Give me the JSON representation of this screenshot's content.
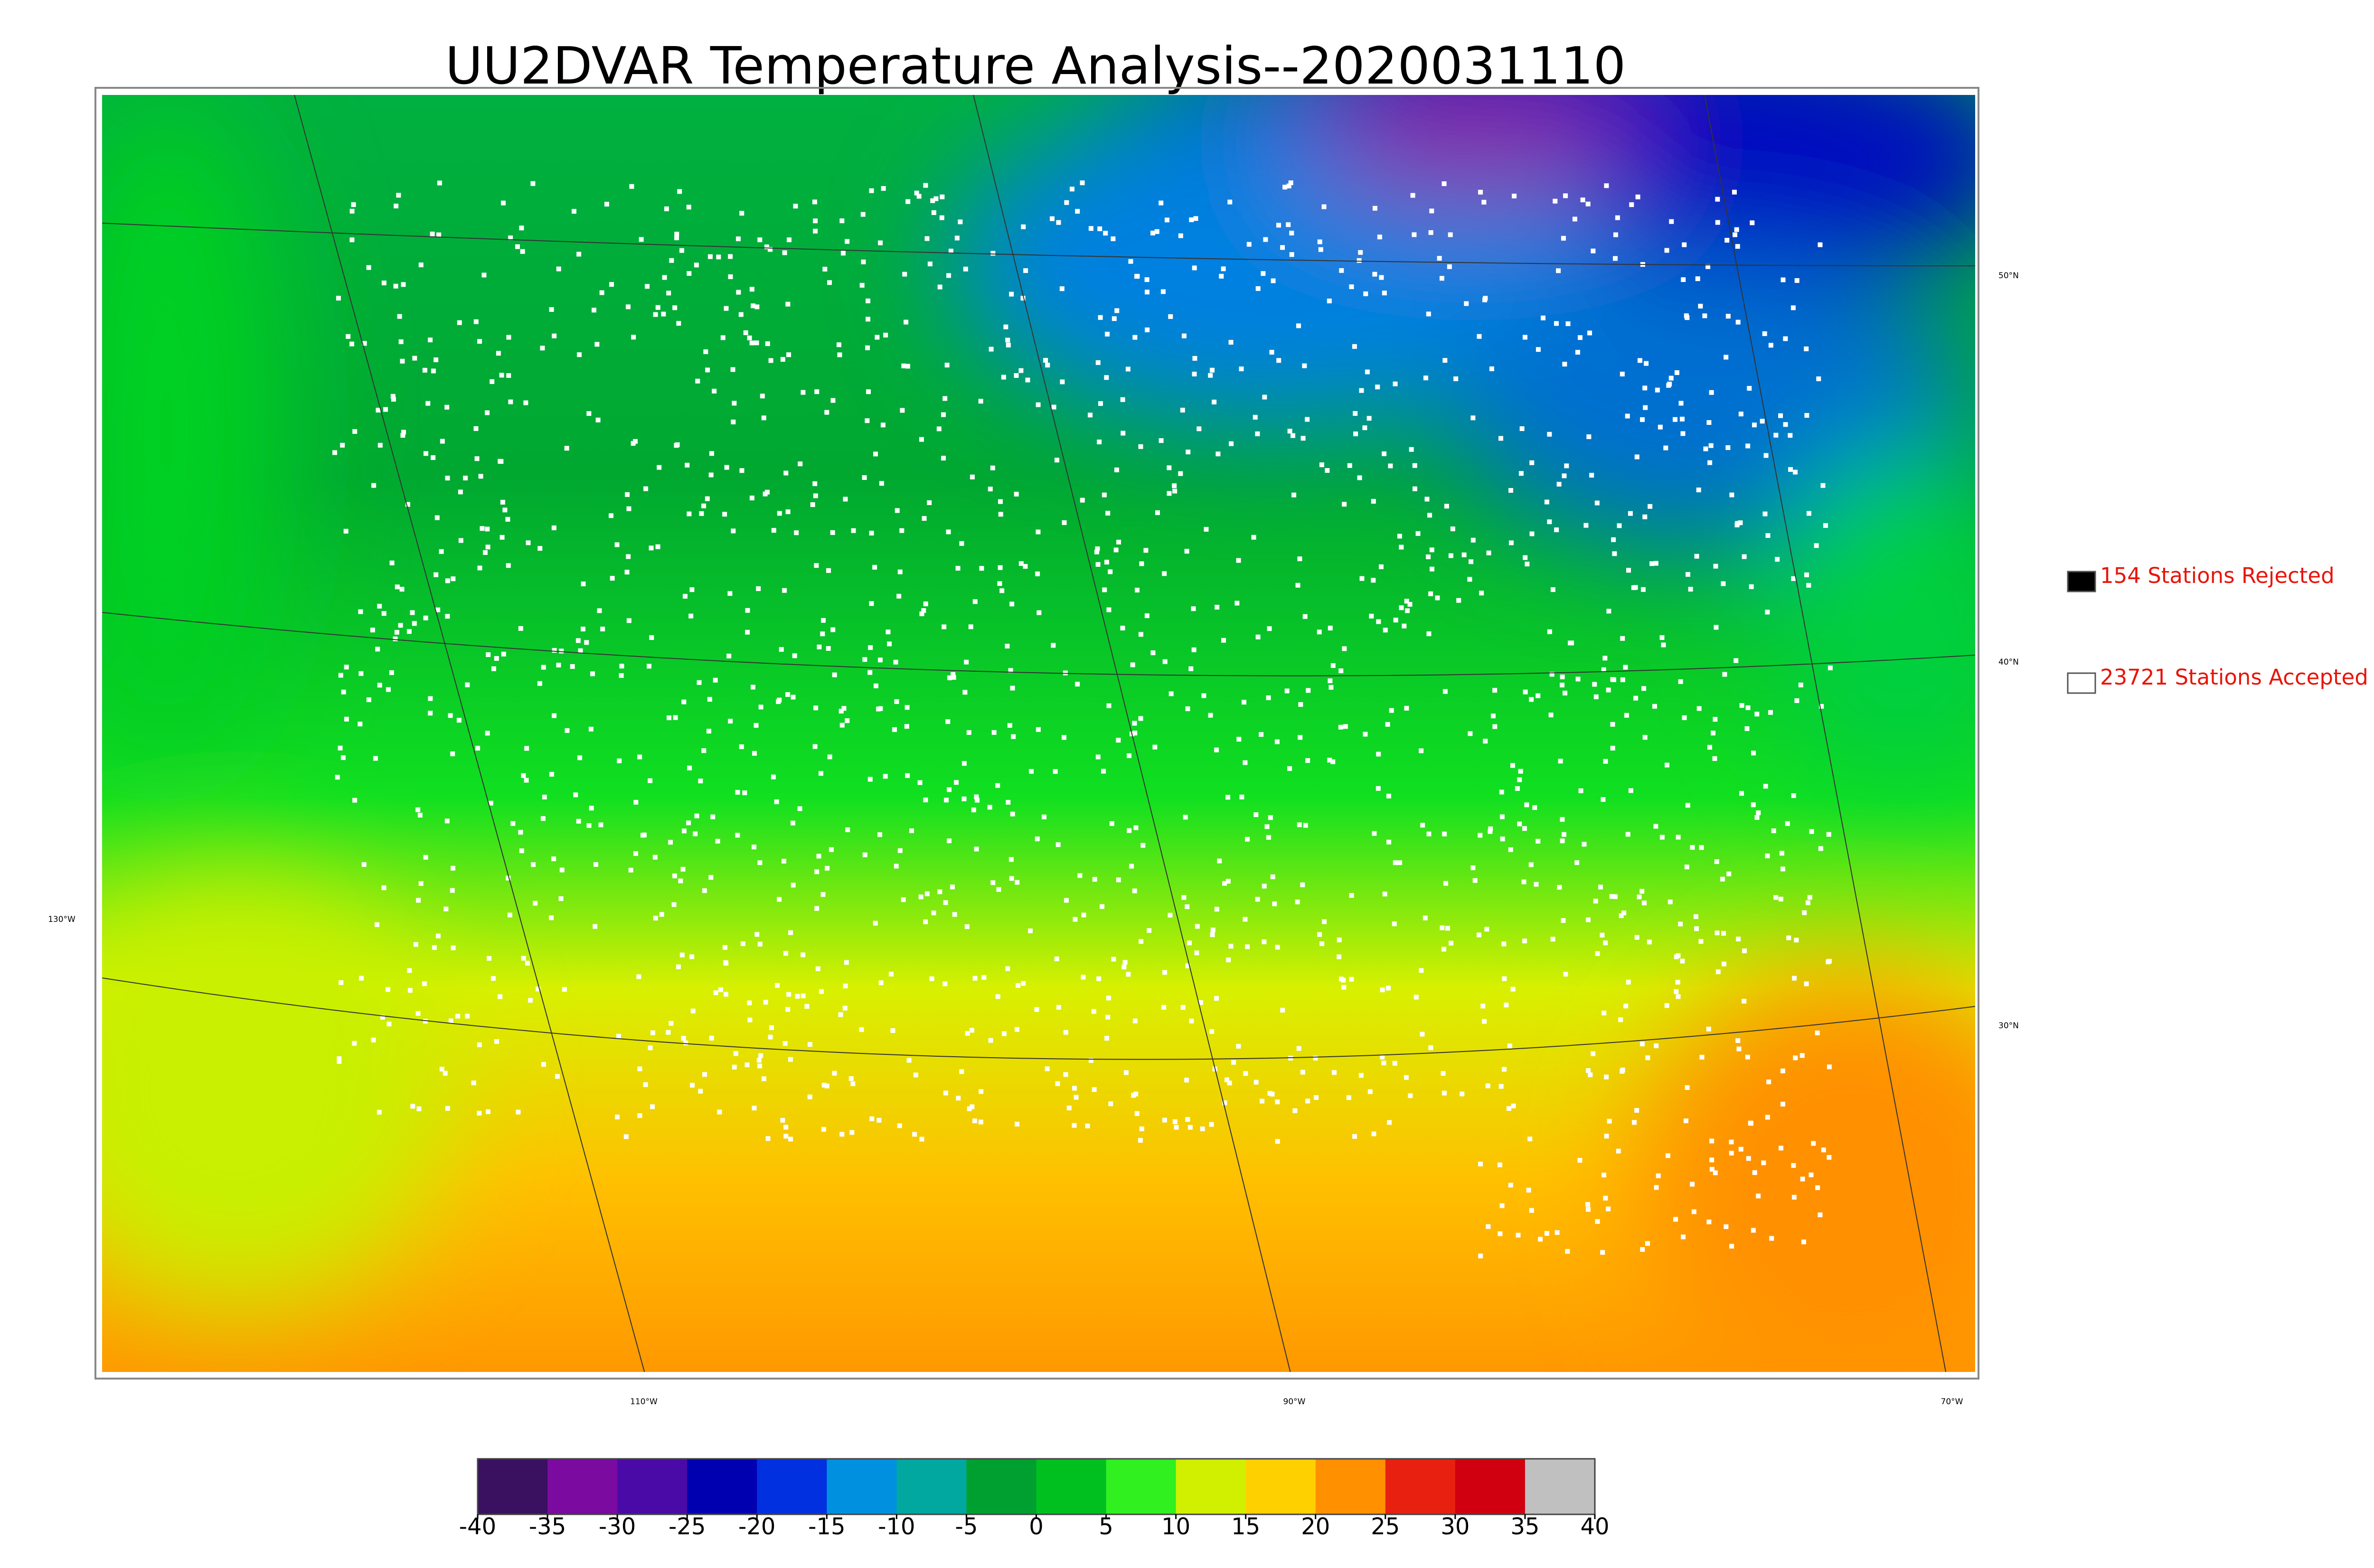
{
  "title": "UU2DVAR Temperature Analysis--2020031110",
  "legend": [
    {
      "label": "154 Stations Rejected",
      "color": "#000000"
    },
    {
      "label": "23721 Stations Accepted",
      "color": "#ffffff"
    }
  ],
  "map": {
    "lat_labels": [
      "50°N",
      "40°N",
      "30°N"
    ],
    "lon_labels": [
      "130°W",
      "110°W",
      "90°W",
      "70°W"
    ]
  },
  "colorbar": {
    "lim": [
      -40,
      40
    ],
    "ticks": [
      -40,
      -35,
      -30,
      -25,
      -20,
      -15,
      -10,
      -5,
      0,
      5,
      10,
      15,
      20,
      25,
      30,
      35,
      40
    ],
    "colors": [
      "#3a1060",
      "#7a0aa0",
      "#4a0aa8",
      "#0000b0",
      "#0030e0",
      "#0090e0",
      "#00a8a0",
      "#00a030",
      "#00c020",
      "#30f020",
      "#d0f000",
      "#ffd000",
      "#ff9000",
      "#e82010",
      "#d00010",
      "#c0c0c0"
    ]
  }
}
